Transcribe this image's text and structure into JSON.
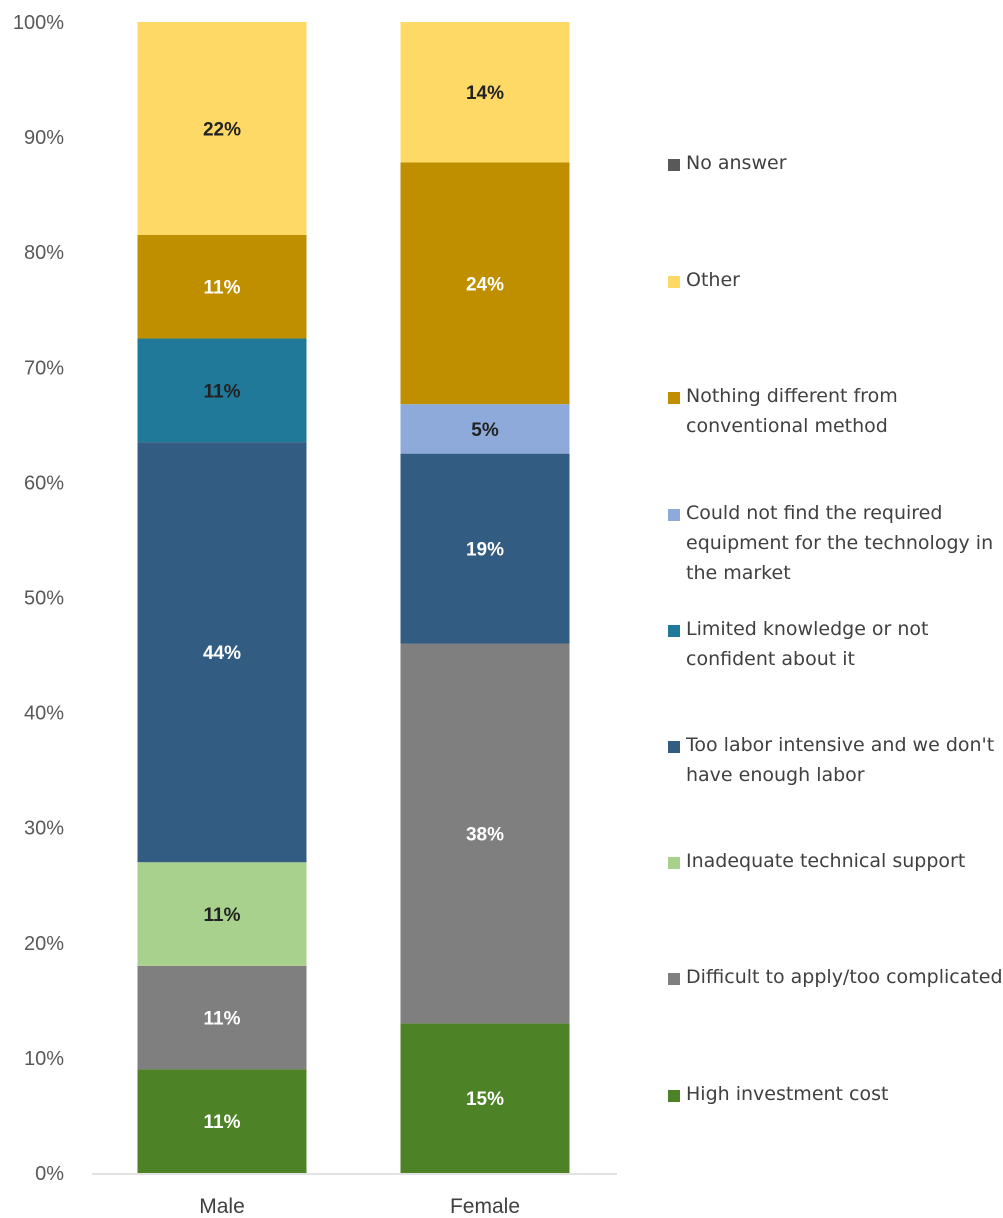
{
  "chart_data": {
    "type": "bar",
    "stacked": true,
    "categories": [
      "Male",
      "Female"
    ],
    "yticks": [
      "0%",
      "10%",
      "20%",
      "30%",
      "40%",
      "50%",
      "60%",
      "70%",
      "80%",
      "90%",
      "100%"
    ],
    "ylim": [
      0,
      100
    ],
    "title": "",
    "xlabel": "",
    "ylabel": "",
    "grid": false,
    "legend_position": "right",
    "series": [
      {
        "name": "High investment cost",
        "color": "#4e8226",
        "label_color": "#ffffff",
        "values": [
          9,
          13
        ],
        "labels": [
          "11%",
          "15%"
        ]
      },
      {
        "name": "Difficult to apply/too complicated",
        "color": "#7f7f7f",
        "label_color": "#ffffff",
        "values": [
          9,
          33
        ],
        "labels": [
          "11%",
          "38%"
        ]
      },
      {
        "name": "Inadequate technical support",
        "color": "#a9d18e",
        "label_color": "#222222",
        "values": [
          9,
          0
        ],
        "labels": [
          "11%",
          ""
        ]
      },
      {
        "name": "Too labor intensive and we don't have enough labor",
        "color": "#335c82",
        "label_color": "#ffffff",
        "values": [
          36.5,
          16.5
        ],
        "labels": [
          "44%",
          "19%"
        ]
      },
      {
        "name": "Limited knowledge or not confident about it",
        "color": "#21799a",
        "label_color": "#222222",
        "values": [
          9,
          0
        ],
        "labels": [
          "11%",
          ""
        ]
      },
      {
        "name": "Could not find the required equipment for the technology in the market",
        "color": "#8eaadb",
        "label_color": "#222222",
        "values": [
          0,
          4.3
        ],
        "labels": [
          "",
          "5%"
        ]
      },
      {
        "name": "Nothing different from conventional method",
        "color": "#bf8f00",
        "label_color": "#ffffff",
        "values": [
          9,
          21
        ],
        "labels": [
          "11%",
          "24%"
        ]
      },
      {
        "name": "Other",
        "color": "#ffd966",
        "label_color": "#222222",
        "values": [
          18.5,
          12.2
        ],
        "labels": [
          "22%",
          "14%"
        ]
      },
      {
        "name": "No answer",
        "color": "#595959",
        "label_color": "#ffffff",
        "values": [
          0,
          0
        ],
        "labels": [
          "",
          ""
        ]
      }
    ]
  },
  "legend": {
    "items": [
      {
        "label": "No answer",
        "color": "#595959"
      },
      {
        "label": "Other",
        "color": "#ffd966"
      },
      {
        "label": "Nothing different from conventional method",
        "color": "#bf8f00"
      },
      {
        "label": "Could not find the required equipment for the technology in the market",
        "color": "#8eaadb"
      },
      {
        "label": "Limited knowledge or not confident about it",
        "color": "#21799a"
      },
      {
        "label": "Too labor intensive and we don't have enough labor",
        "color": "#335c82"
      },
      {
        "label": "Inadequate technical support",
        "color": "#a9d18e"
      },
      {
        "label": "Difficult to apply/too complicated",
        "color": "#7f7f7f"
      },
      {
        "label": "High investment cost",
        "color": "#4e8226"
      }
    ]
  }
}
